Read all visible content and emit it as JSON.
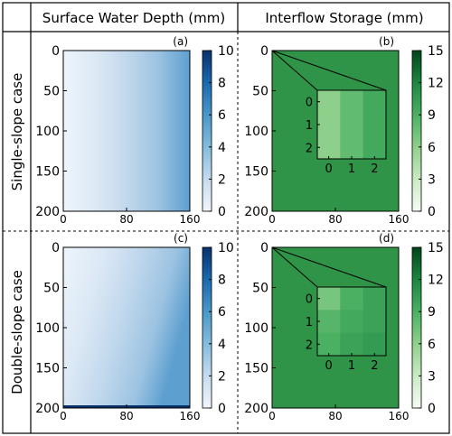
{
  "column_headers": [
    "Surface Water Depth (mm)",
    "Interflow Storage (mm)"
  ],
  "row_headers": [
    "Single-slope case",
    "Double-slope case"
  ],
  "colors": {
    "frame": "#000000",
    "blues_light": "#f2f6fb",
    "blues_dark": "#08306b",
    "greens_light": "#f7fcf5",
    "greens_dark": "#00441b",
    "interflow_field": "#2f9447"
  },
  "chart_data": [
    {
      "type": "heatmap",
      "panel_label": "(a)",
      "row": "Single-slope case",
      "column": "Surface Water Depth (mm)",
      "colormap": "Blues",
      "x_ticks": [
        "0",
        "80",
        "160"
      ],
      "y_ticks": [
        "0",
        "50",
        "100",
        "150",
        "200"
      ],
      "xlim": [
        0,
        160
      ],
      "ylim": [
        200,
        0
      ],
      "colorbar_ticks": [
        "0",
        "2",
        "4",
        "6",
        "8",
        "10"
      ],
      "colorbar_range": [
        0,
        10
      ],
      "field": {
        "description_values_along_x": [
          0.3,
          0.6,
          1.0,
          1.5,
          2.3,
          3.0,
          4.0,
          5.0
        ],
        "x_positions": [
          0,
          20,
          40,
          60,
          80,
          100,
          120,
          160
        ],
        "varies_along": "x"
      }
    },
    {
      "type": "heatmap",
      "panel_label": "(b)",
      "row": "Single-slope case",
      "column": "Interflow Storage (mm)",
      "colormap": "Greens",
      "x_ticks": [
        "0",
        "80",
        "160"
      ],
      "y_ticks": [
        "0",
        "50",
        "100",
        "150",
        "200"
      ],
      "xlim": [
        0,
        160
      ],
      "ylim": [
        200,
        0
      ],
      "colorbar_ticks": [
        "0",
        "3",
        "6",
        "9",
        "12",
        "15"
      ],
      "colorbar_range": [
        0,
        15
      ],
      "field_value": 10.5,
      "inset": {
        "x_ticks": [
          "0",
          "1",
          "2"
        ],
        "y_ticks": [
          "0",
          "1",
          "2"
        ],
        "cells": [
          [
            6.0,
            8.0,
            9.5
          ],
          [
            6.0,
            8.0,
            9.5
          ],
          [
            6.0,
            8.0,
            9.5
          ]
        ]
      }
    },
    {
      "type": "heatmap",
      "panel_label": "(c)",
      "row": "Double-slope case",
      "column": "Surface Water Depth (mm)",
      "colormap": "Blues",
      "x_ticks": [
        "0",
        "80",
        "160"
      ],
      "y_ticks": [
        "0",
        "50",
        "100",
        "150",
        "200"
      ],
      "xlim": [
        0,
        160
      ],
      "ylim": [
        200,
        0
      ],
      "colorbar_ticks": [
        "0",
        "2",
        "4",
        "6",
        "8",
        "10"
      ],
      "colorbar_range": [
        0,
        10
      ],
      "field": {
        "description_values_along_x": [
          0.3,
          0.6,
          1.0,
          1.5,
          2.3,
          3.0,
          4.0,
          5.0
        ],
        "x_positions": [
          0,
          20,
          40,
          60,
          80,
          100,
          120,
          160
        ],
        "varies_along": "x and y",
        "bottom_edge_value": 9.5
      }
    },
    {
      "type": "heatmap",
      "panel_label": "(d)",
      "row": "Double-slope case",
      "column": "Interflow Storage (mm)",
      "colormap": "Greens",
      "x_ticks": [
        "0",
        "80",
        "160"
      ],
      "y_ticks": [
        "0",
        "50",
        "100",
        "150",
        "200"
      ],
      "xlim": [
        0,
        160
      ],
      "ylim": [
        200,
        0
      ],
      "colorbar_ticks": [
        "0",
        "3",
        "6",
        "9",
        "12",
        "15"
      ],
      "colorbar_range": [
        0,
        15
      ],
      "field_value": 10.5,
      "inset": {
        "x_ticks": [
          "0",
          "1",
          "2"
        ],
        "y_ticks": [
          "0",
          "1",
          "2"
        ],
        "cells": [
          [
            7.0,
            9.0,
            10.0
          ],
          [
            8.5,
            9.5,
            10.0
          ],
          [
            9.0,
            10.0,
            10.5
          ]
        ]
      }
    }
  ]
}
